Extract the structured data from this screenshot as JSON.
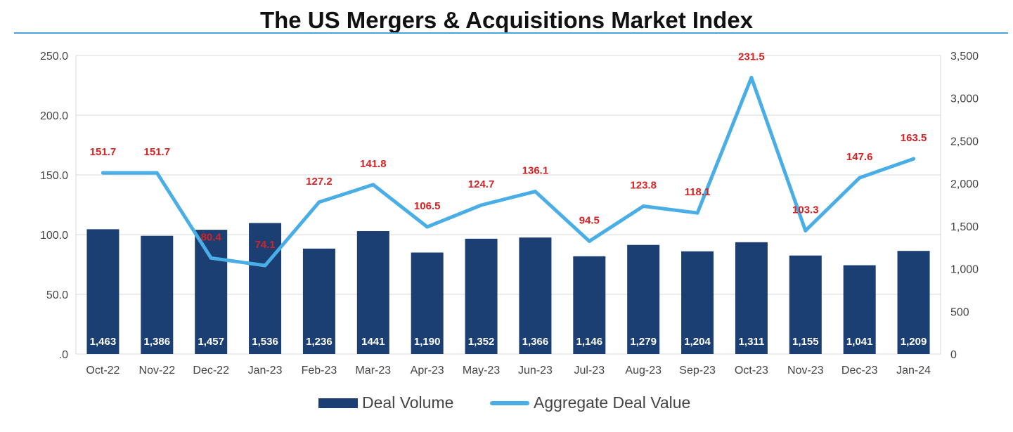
{
  "chart_data": {
    "type": "bar",
    "title": "The US Mergers & Acquisitions Market Index",
    "categories": [
      "Oct-22",
      "Nov-22",
      "Dec-22",
      "Jan-23",
      "Feb-23",
      "Mar-23",
      "Apr-23",
      "May-23",
      "Jun-23",
      "Jul-23",
      "Aug-23",
      "Sep-23",
      "Oct-23",
      "Nov-23",
      "Dec-23",
      "Jan-24"
    ],
    "series": [
      {
        "name": "Deal Volume",
        "type": "bar",
        "axis": "right",
        "values": [
          1463,
          1386,
          1457,
          1536,
          1236,
          1441,
          1190,
          1352,
          1366,
          1146,
          1279,
          1204,
          1311,
          1155,
          1041,
          1209
        ],
        "labels": [
          "1,463",
          "1,386",
          "1,457",
          "1,536",
          "1,236",
          "1441",
          "1,190",
          "1,352",
          "1,366",
          "1,146",
          "1,279",
          "1,204",
          "1,311",
          "1,155",
          "1,041",
          "1,209"
        ],
        "color": "#1b3f73"
      },
      {
        "name": "Aggregate Deal Value",
        "type": "line",
        "axis": "left",
        "values": [
          151.7,
          151.7,
          80.4,
          74.1,
          127.2,
          141.8,
          106.5,
          124.7,
          136.1,
          94.5,
          123.8,
          118.1,
          231.5,
          103.3,
          147.6,
          163.5
        ],
        "labels": [
          "151.7",
          "151.7",
          "80.4",
          "74.1",
          "127.2",
          "141.8",
          "106.5",
          "124.7",
          "136.1",
          "94.5",
          "123.8",
          "118.1",
          "231.5",
          "103.3",
          "147.6",
          "163.5"
        ],
        "color": "#4aaee6"
      }
    ],
    "y_left": {
      "ylim": [
        0,
        250
      ],
      "ticks": [
        ".0",
        "50.0",
        "100.0",
        "150.0",
        "200.0",
        "250.0"
      ]
    },
    "y_right": {
      "ylim": [
        0,
        3500
      ],
      "ticks": [
        "0",
        "500",
        "1,000",
        "1,500",
        "2,000",
        "2,500",
        "3,000",
        "3,500"
      ]
    },
    "grid": true,
    "legend": {
      "position": "bottom",
      "entries": [
        "Deal Volume",
        "Aggregate Deal Value"
      ]
    },
    "label_color": "#d62222"
  }
}
